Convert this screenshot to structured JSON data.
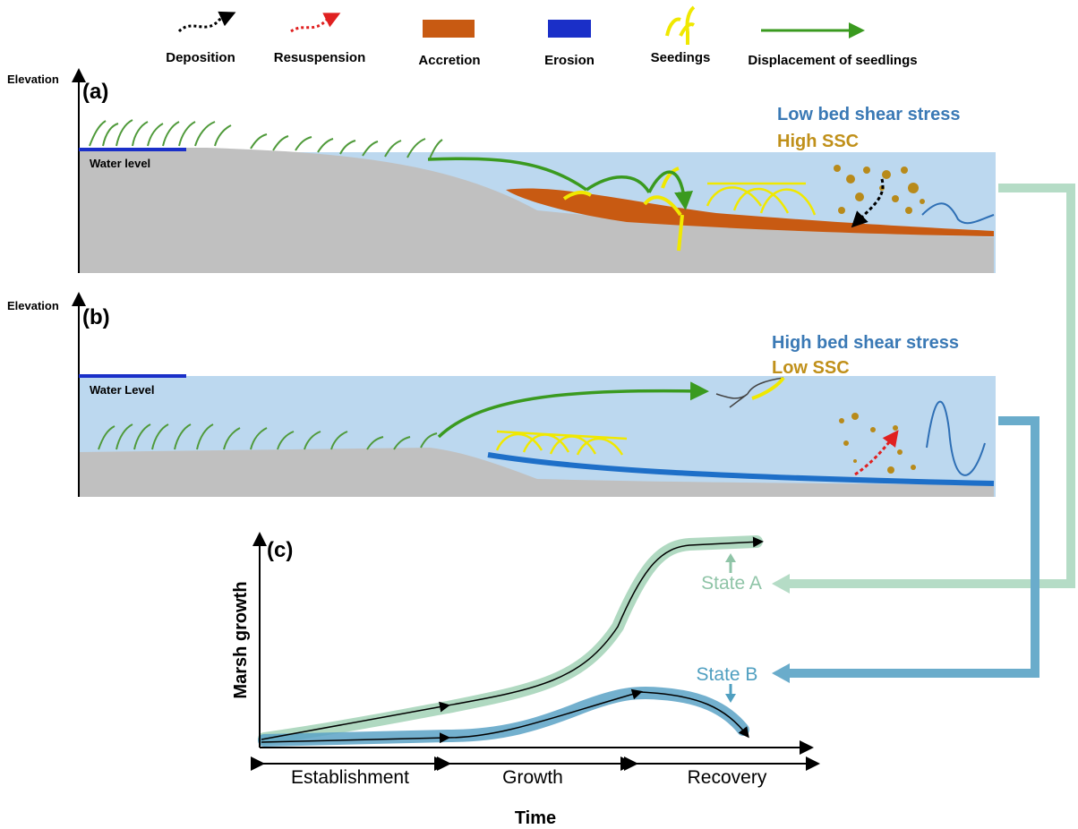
{
  "legend": {
    "items": [
      "Deposition",
      "Resuspension",
      "Accretion",
      "Erosion",
      "Seedings",
      "Displacement of seedlings"
    ]
  },
  "panel_a": {
    "axis_label": "Elevation",
    "tag": "(a)",
    "water_label": "Water level",
    "stress": "Low bed shear stress",
    "ssc": "High SSC"
  },
  "panel_b": {
    "axis_label": "Elevation",
    "tag": "(b)",
    "water_label": "Water Level",
    "stress": "High bed shear stress",
    "ssc": "Low SSC"
  },
  "panel_c": {
    "tag": "(c)",
    "y_label": "Marsh growth",
    "state_a": "State A",
    "state_b": "State B",
    "phases": [
      "Establishment",
      "Growth",
      "Recovery"
    ],
    "x_label": "Time"
  }
}
